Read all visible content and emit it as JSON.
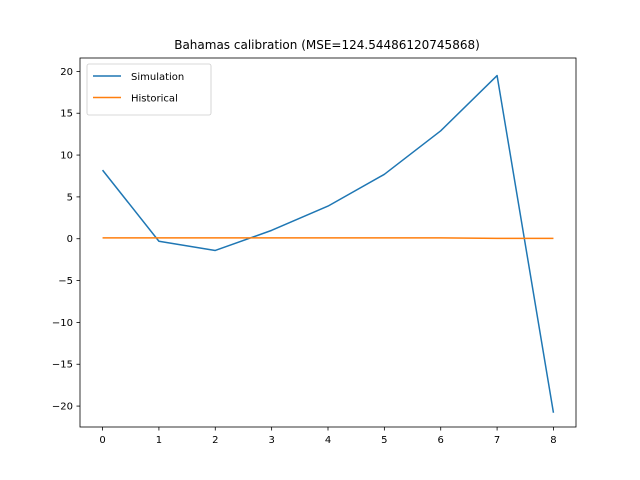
{
  "chart_data": {
    "type": "line",
    "title": "Bahamas calibration (MSE=124.54486120745868)",
    "xlabel": "",
    "ylabel": "",
    "x": [
      0,
      1,
      2,
      3,
      4,
      5,
      6,
      7,
      8
    ],
    "xlim": [
      -0.4,
      8.4
    ],
    "ylim": [
      -22.5,
      21.6
    ],
    "x_ticks": [
      0,
      1,
      2,
      3,
      4,
      5,
      6,
      7,
      8
    ],
    "x_tick_labels": [
      "0",
      "1",
      "2",
      "3",
      "4",
      "5",
      "6",
      "7",
      "8"
    ],
    "y_ticks": [
      -20,
      -15,
      -10,
      -5,
      0,
      5,
      10,
      15,
      20
    ],
    "y_tick_labels": [
      "−20",
      "−15",
      "−10",
      "−5",
      "0",
      "5",
      "10",
      "15",
      "20"
    ],
    "grid": false,
    "legend_position": "upper left",
    "series": [
      {
        "name": "Simulation",
        "color": "#1f77b4",
        "values": [
          8.2,
          -0.3,
          -1.4,
          1.0,
          3.9,
          7.7,
          12.9,
          19.5,
          -20.8
        ]
      },
      {
        "name": "Historical",
        "color": "#ff7f0e",
        "values": [
          0.1,
          0.1,
          0.1,
          0.1,
          0.1,
          0.1,
          0.1,
          0.05,
          0.05
        ]
      }
    ]
  }
}
